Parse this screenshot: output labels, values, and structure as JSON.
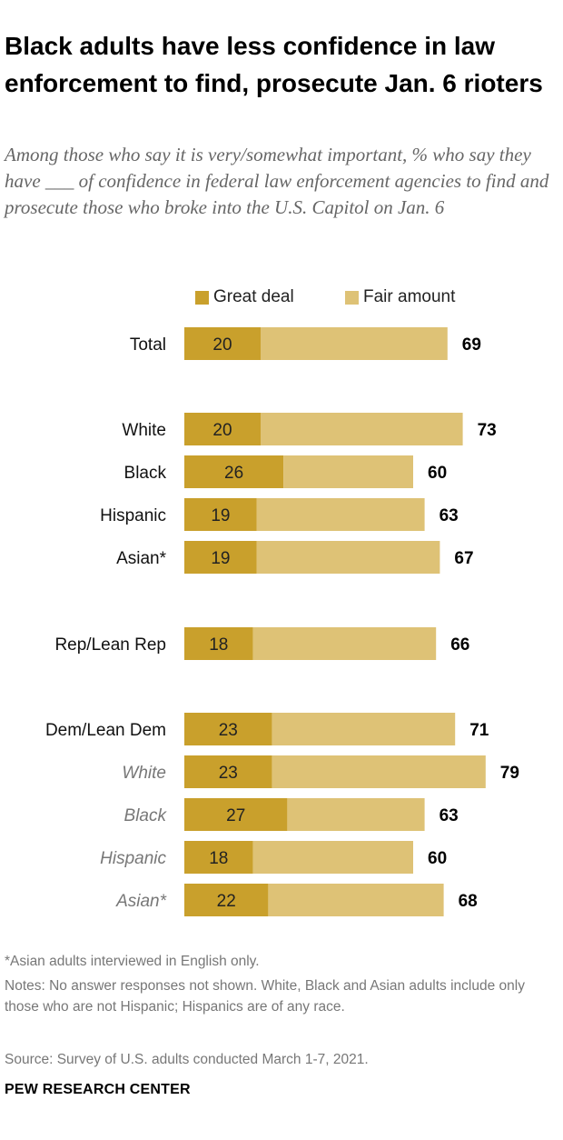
{
  "title": "Black adults have less confidence in law enforcement to find, prosecute Jan. 6 rioters",
  "subtitle": "Among those who say it is very/somewhat important, % who say they have ___ of confidence in federal law enforcement agencies to find and prosecute those who broke into the U.S. Capitol on Jan. 6",
  "colors": {
    "great_deal": "#c9a02c",
    "fair_amount": "#dec276",
    "sub_label": "#777777"
  },
  "chart_data": {
    "type": "bar",
    "orientation": "horizontal",
    "stacked": true,
    "legend": [
      "Great deal",
      "Fair amount"
    ],
    "legend_position": "top",
    "categories": [
      "Total",
      "White",
      "Black",
      "Hispanic",
      "Asian*",
      "Rep/Lean Rep",
      "Dem/Lean Dem",
      "White",
      "Black",
      "Hispanic",
      "Asian*"
    ],
    "category_style": [
      "normal",
      "normal",
      "normal",
      "normal",
      "normal",
      "normal",
      "normal",
      "italic",
      "italic",
      "italic",
      "italic"
    ],
    "series": [
      {
        "name": "Great deal",
        "values": [
          20,
          20,
          26,
          19,
          19,
          18,
          23,
          23,
          27,
          18,
          22
        ]
      },
      {
        "name": "Fair amount",
        "values": [
          49,
          53,
          34,
          44,
          48,
          48,
          48,
          56,
          36,
          42,
          46
        ]
      }
    ],
    "totals": [
      69,
      73,
      60,
      63,
      67,
      66,
      71,
      79,
      63,
      60,
      68
    ],
    "xlim": [
      0,
      100
    ]
  },
  "footer": {
    "note1": "*Asian adults interviewed in English only.",
    "note2": "Notes: No answer responses not shown. White, Black and Asian adults include only those who are not Hispanic; Hispanics are of any race.",
    "source": "Source: Survey of U.S. adults conducted March 1-7, 2021.",
    "org": "PEW RESEARCH CENTER"
  }
}
